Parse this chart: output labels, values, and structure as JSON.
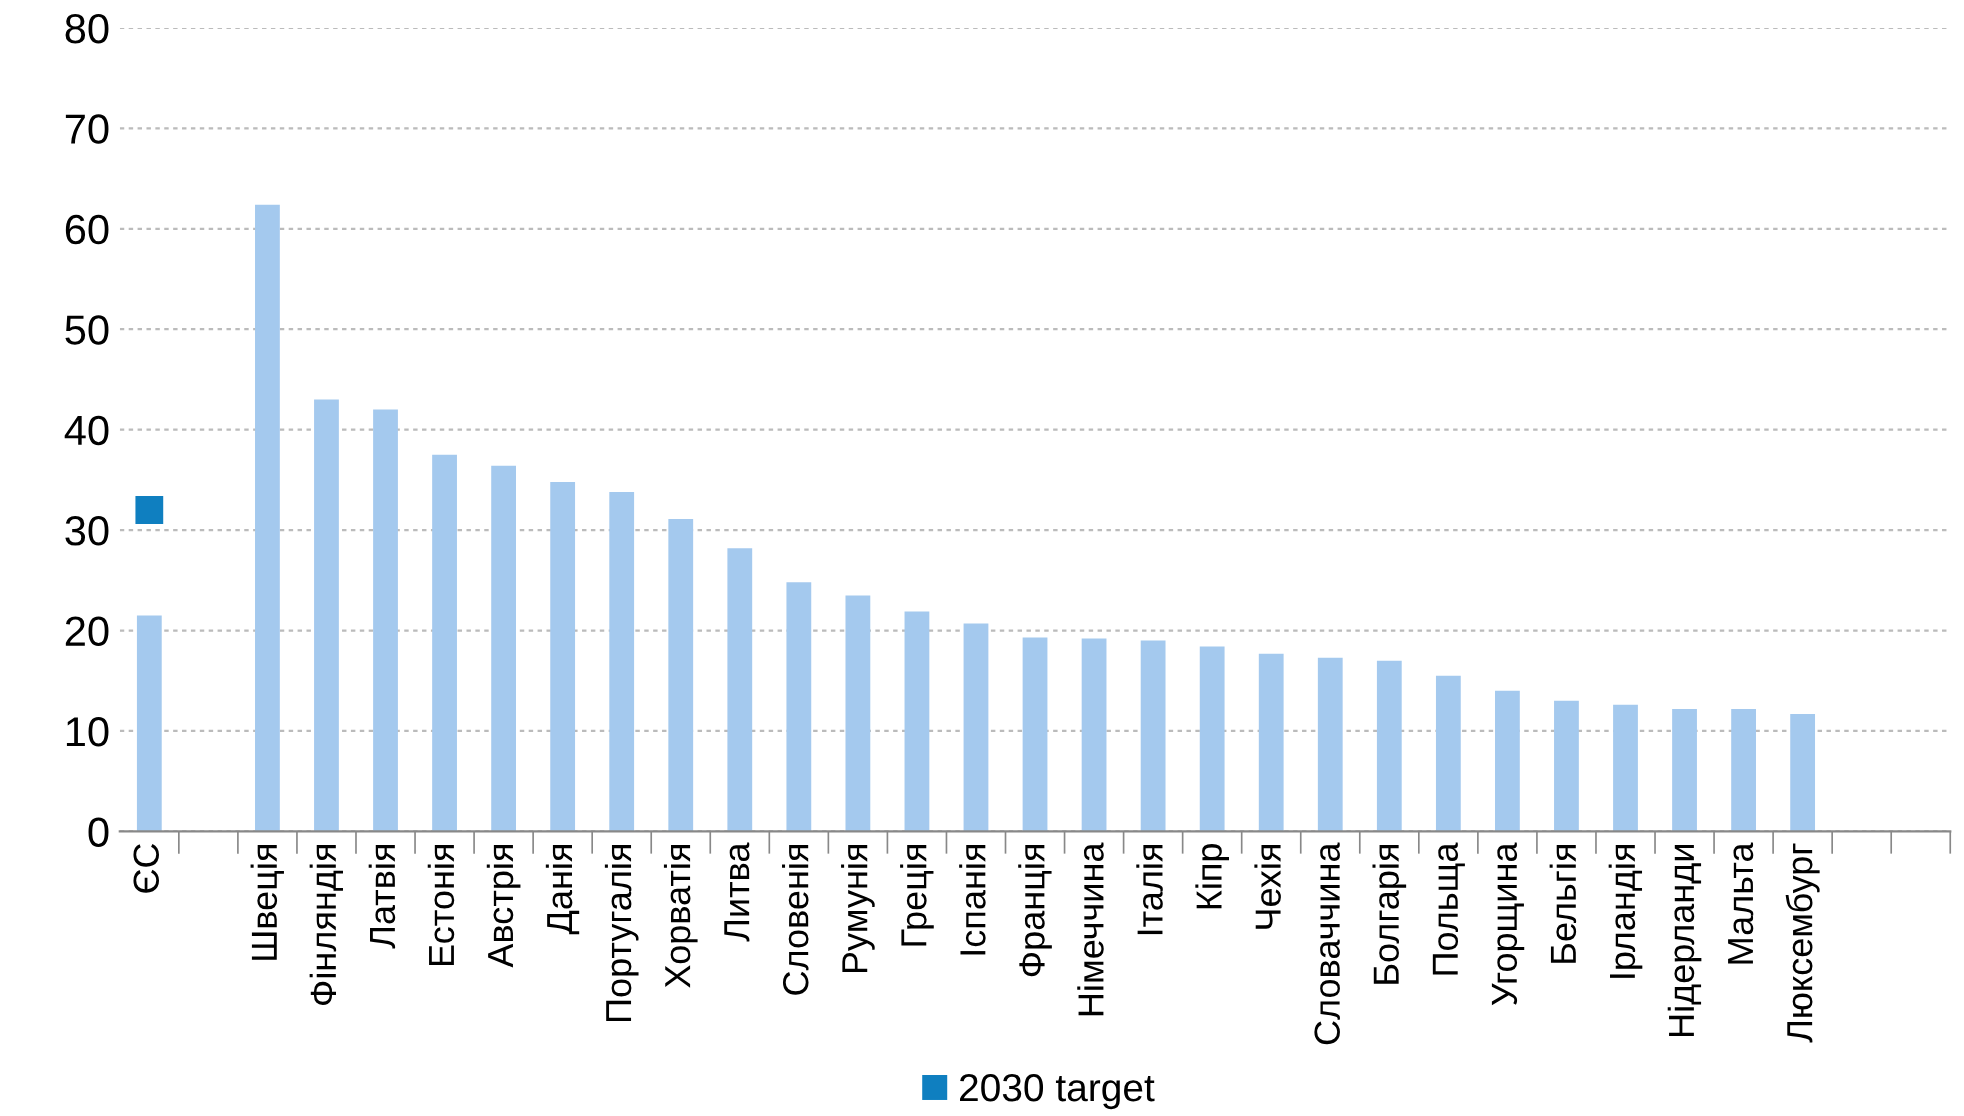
{
  "chart_data": {
    "type": "bar",
    "categories": [
      "ЄС",
      null,
      "Швеція",
      "Фінляндія",
      "Латвія",
      "Естонія",
      "Австрія",
      "Данія",
      "Португалія",
      "Хорватія",
      "Литва",
      "Словенія",
      "Румунія",
      "Греція",
      "Іспанія",
      "Франція",
      "Німеччина",
      "Італія",
      "Кіпр",
      "Чехія",
      "Словаччина",
      "Болгарія",
      "Польща",
      "Угорщина",
      "Бельгія",
      "Ірландія",
      "Нідерланди",
      "Мальта",
      "Люксембург",
      null,
      null
    ],
    "series": [
      {
        "color": "#a4c9ee",
        "values": [
          21.5,
          null,
          62.4,
          43.0,
          42.0,
          37.5,
          36.4,
          34.8,
          33.8,
          31.1,
          28.2,
          24.8,
          23.5,
          21.9,
          20.7,
          19.3,
          19.2,
          19.0,
          18.4,
          17.7,
          17.3,
          17.0,
          15.5,
          14.0,
          13.0,
          12.6,
          12.2,
          12.2,
          11.7,
          null,
          null
        ]
      },
      {
        "type": "scatter",
        "name": "2030 target",
        "color": "#0f7fc0",
        "marker": "square",
        "values": [
          32,
          null,
          null,
          null,
          null,
          null,
          null,
          null,
          null,
          null,
          null,
          null,
          null,
          null,
          null,
          null,
          null,
          null,
          null,
          null,
          null,
          null,
          null,
          null,
          null,
          null,
          null,
          null,
          null,
          null,
          null
        ]
      }
    ],
    "ylim": [
      0,
      80
    ],
    "yticks": [
      0,
      10,
      20,
      30,
      40,
      50,
      60,
      70,
      80
    ],
    "grid": "y",
    "legend": "bottom"
  }
}
